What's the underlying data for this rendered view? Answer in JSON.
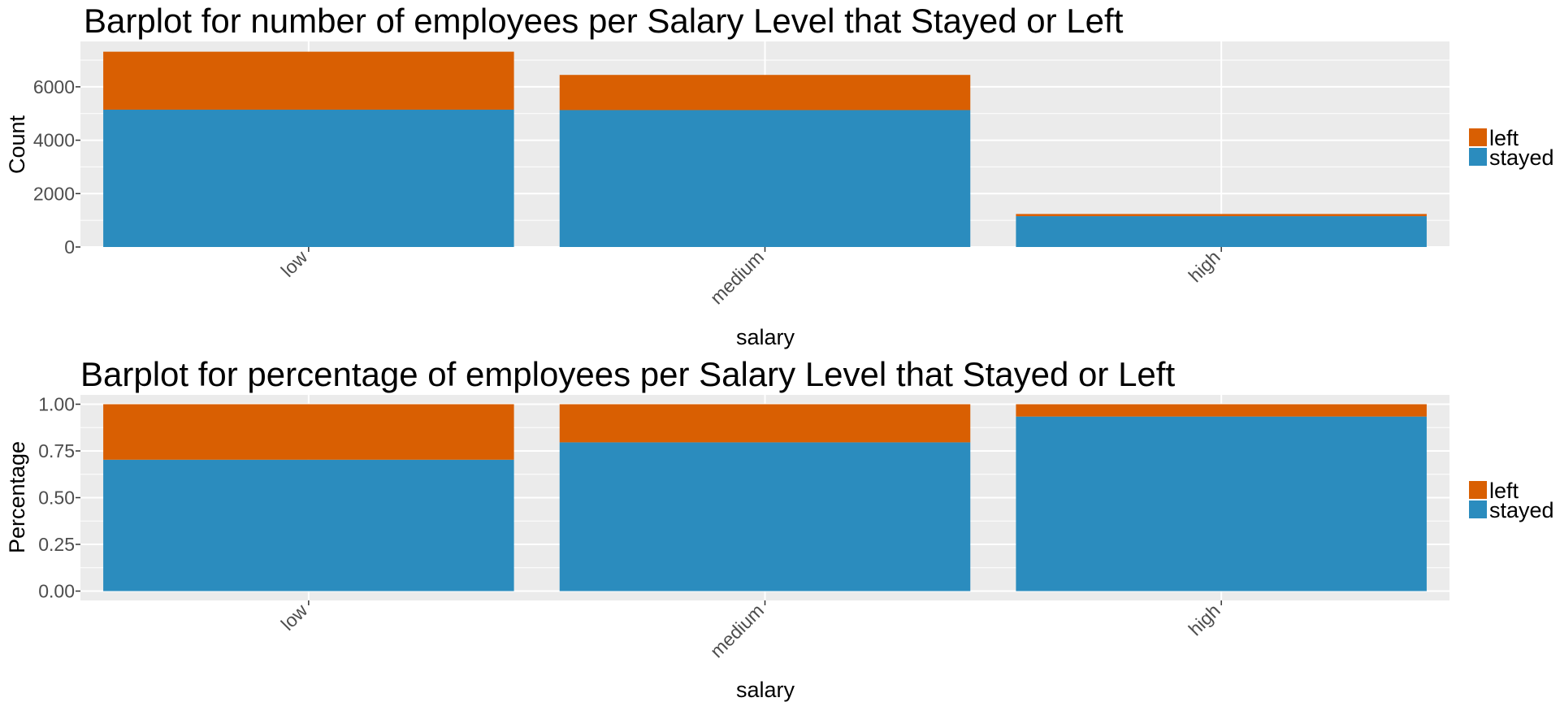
{
  "chart_data": [
    {
      "type": "bar",
      "stacked": true,
      "title": "Barplot for number of employees per Salary Level that Stayed or Left",
      "xlabel": "salary",
      "ylabel": "Count",
      "categories": [
        "low",
        "medium",
        "high"
      ],
      "series": [
        {
          "name": "stayed",
          "color": "#2b8cbe",
          "values": [
            5144,
            5129,
            1155
          ]
        },
        {
          "name": "left",
          "color": "#d95f02",
          "values": [
            2172,
            1317,
            82
          ]
        }
      ],
      "ylim": [
        0,
        7700
      ],
      "yticks": [
        0,
        2000,
        4000,
        6000
      ],
      "ytick_labels": [
        "0",
        "2000",
        "4000",
        "6000"
      ],
      "legend": {
        "position": "right",
        "entries": [
          "left",
          "stayed"
        ]
      },
      "grid": true
    },
    {
      "type": "bar",
      "stacked": true,
      "title": "Barplot for percentage of employees per Salary Level that Stayed or Left",
      "xlabel": "salary",
      "ylabel": "Percentage",
      "categories": [
        "low",
        "medium",
        "high"
      ],
      "series": [
        {
          "name": "stayed",
          "color": "#2b8cbe",
          "values": [
            0.703,
            0.796,
            0.934
          ]
        },
        {
          "name": "left",
          "color": "#d95f02",
          "values": [
            0.297,
            0.204,
            0.066
          ]
        }
      ],
      "ylim": [
        -0.05,
        1.05
      ],
      "yticks": [
        0,
        0.25,
        0.5,
        0.75,
        1.0
      ],
      "ytick_labels": [
        "0.00",
        "0.25",
        "0.50",
        "0.75",
        "1.00"
      ],
      "legend": {
        "position": "right",
        "entries": [
          "left",
          "stayed"
        ]
      },
      "grid": true
    }
  ]
}
